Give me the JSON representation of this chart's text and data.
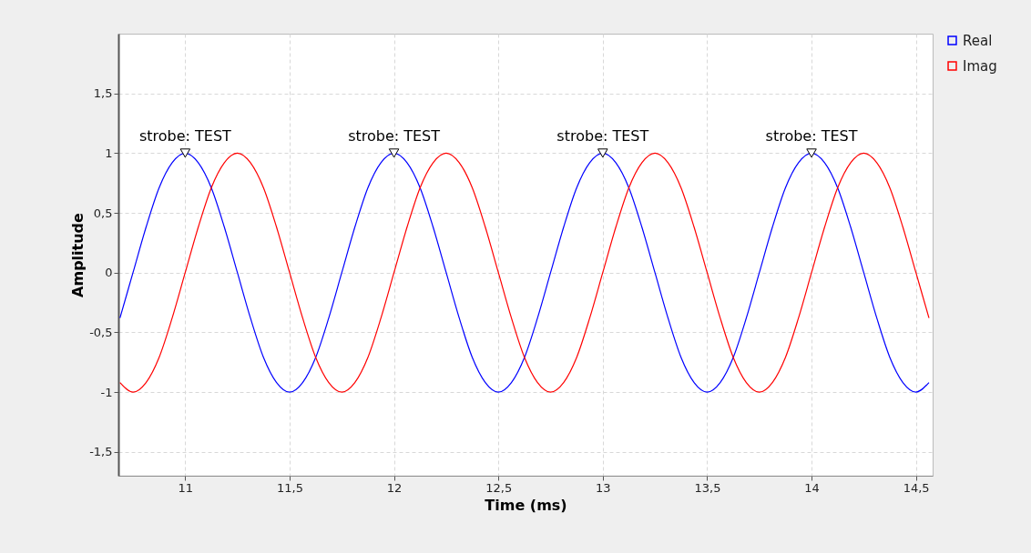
{
  "chart_data": {
    "type": "line",
    "xlabel": "Time (ms)",
    "ylabel": "Amplitude",
    "x": [
      10.6875,
      10.75,
      10.8125,
      10.875,
      10.9375,
      11,
      11.0625,
      11.125,
      11.1875,
      11.25,
      11.3125,
      11.375,
      11.4375,
      11.5,
      11.5625,
      11.625,
      11.6875,
      11.75,
      11.8125,
      11.875,
      11.9375,
      12,
      12.0625,
      12.125,
      12.1875,
      12.25,
      12.3125,
      12.375,
      12.4375,
      12.5,
      12.5625,
      12.625,
      12.6875,
      12.75,
      12.8125,
      12.875,
      12.9375,
      13,
      13.0625,
      13.125,
      13.1875,
      13.25,
      13.3125,
      13.375,
      13.4375,
      13.5,
      13.5625,
      13.625,
      13.6875,
      13.75,
      13.8125,
      13.875,
      13.9375,
      14,
      14.0625,
      14.125,
      14.1875,
      14.25,
      14.3125,
      14.375,
      14.4375,
      14.5,
      14.5625
    ],
    "series": [
      {
        "name": "Real",
        "color": "#0000ff",
        "values": [
          -0.38,
          0,
          0.38,
          0.71,
          0.92,
          1,
          0.92,
          0.71,
          0.38,
          0,
          -0.38,
          -0.71,
          -0.92,
          -1,
          -0.92,
          -0.71,
          -0.38,
          0,
          0.38,
          0.71,
          0.92,
          1,
          0.92,
          0.71,
          0.38,
          0,
          -0.38,
          -0.71,
          -0.92,
          -1,
          -0.92,
          -0.71,
          -0.38,
          0,
          0.38,
          0.71,
          0.92,
          1,
          0.92,
          0.71,
          0.38,
          0,
          -0.38,
          -0.71,
          -0.92,
          -1,
          -0.92,
          -0.71,
          -0.38,
          0,
          0.38,
          0.71,
          0.92,
          1,
          0.92,
          0.71,
          0.38,
          0,
          -0.38,
          -0.71,
          -0.92,
          -1,
          -0.92
        ]
      },
      {
        "name": "Imag",
        "color": "#ff0000",
        "values": [
          -0.92,
          -1,
          -0.92,
          -0.71,
          -0.38,
          0,
          0.38,
          0.71,
          0.92,
          1,
          0.92,
          0.71,
          0.38,
          0,
          -0.38,
          -0.71,
          -0.92,
          -1,
          -0.92,
          -0.71,
          -0.38,
          0,
          0.38,
          0.71,
          0.92,
          1,
          0.92,
          0.71,
          0.38,
          0,
          -0.38,
          -0.71,
          -0.92,
          -1,
          -0.92,
          -0.71,
          -0.38,
          0,
          0.38,
          0.71,
          0.92,
          1,
          0.92,
          0.71,
          0.38,
          0,
          -0.38,
          -0.71,
          -0.92,
          -1,
          -0.92,
          -0.71,
          -0.38,
          0,
          0.38,
          0.71,
          0.92,
          1,
          0.92,
          0.71,
          0.38,
          0,
          -0.38
        ]
      }
    ],
    "xlim": [
      10.68,
      14.58
    ],
    "xticks": [
      11,
      {
        "value": 11.5,
        "label": "11,5"
      },
      12,
      {
        "value": 12.5,
        "label": "12,5"
      },
      13,
      {
        "value": 13.5,
        "label": "13,5"
      },
      14,
      {
        "value": 14.5,
        "label": "14,5"
      }
    ],
    "ylim": [
      -1.7,
      2
    ],
    "yticks": [
      {
        "value": -1.5,
        "label": "-1,5"
      },
      -1,
      {
        "value": -0.5,
        "label": "-0,5"
      },
      0,
      {
        "value": 0.5,
        "label": "0,5"
      },
      1,
      {
        "value": 1.5,
        "label": "1,5"
      }
    ],
    "grid": true,
    "legend": "top right",
    "line_style": "solid",
    "marker": "none",
    "annotations": [
      {
        "text": "strobe: TEST",
        "x": 11,
        "y": 1
      },
      {
        "text": "strobe: TEST",
        "x": 12,
        "y": 1
      },
      {
        "text": "strobe: TEST",
        "x": 13,
        "y": 1
      },
      {
        "text": "strobe: TEST",
        "x": 14,
        "y": 1
      }
    ]
  }
}
